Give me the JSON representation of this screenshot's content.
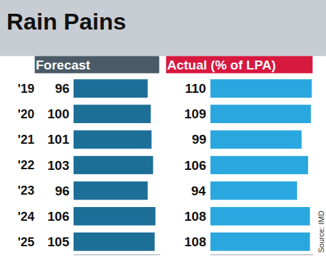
{
  "chart_data": {
    "type": "bar",
    "orientation": "horizontal",
    "title": "Rain Pains",
    "categories": [
      "'19",
      "'20",
      "'21",
      "'22",
      "'23",
      "'24",
      "'25"
    ],
    "series": [
      {
        "name": "Forecast",
        "color": "#1c6f97",
        "values": [
          96,
          100,
          101,
          103,
          96,
          106,
          105
        ]
      },
      {
        "name": "Actual (% of LPA)",
        "color": "#2aa7df",
        "values": [
          110,
          109,
          99,
          106,
          94,
          108,
          108
        ]
      }
    ],
    "xlim": [
      0,
      112
    ],
    "data_labels": true,
    "tick_labels": "y",
    "source": "Source: IMD"
  }
}
